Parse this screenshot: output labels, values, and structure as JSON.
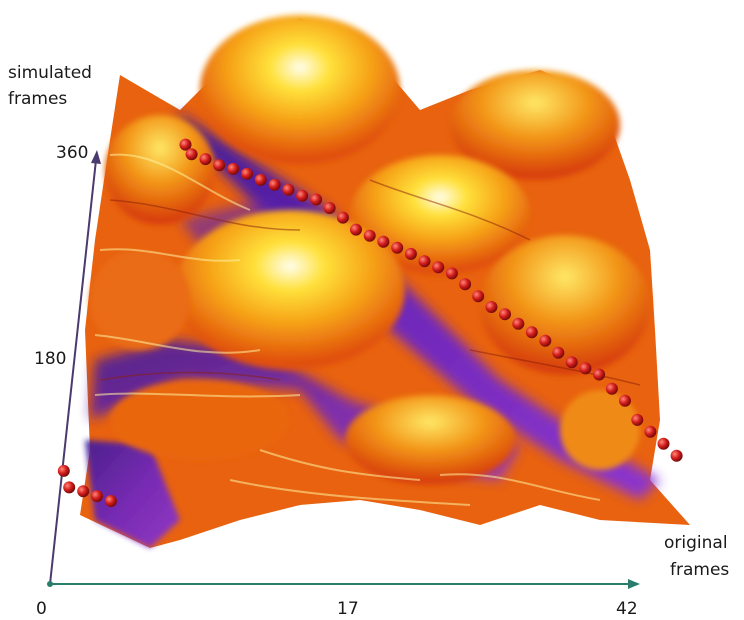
{
  "chart_data": {
    "type": "surface-3d",
    "title": "",
    "x_axis": {
      "label_line1": "original",
      "label_line2": "frames",
      "ticks": [
        "0",
        "17",
        "42"
      ],
      "tick_values": [
        0,
        17,
        42
      ],
      "range": [
        0,
        42
      ],
      "color": "#2a7d6b"
    },
    "y_axis": {
      "label_line1": "simulated",
      "label_line2": "frames",
      "ticks": [
        "180",
        "360"
      ],
      "tick_values": [
        180,
        360
      ],
      "range": [
        0,
        360
      ],
      "color": "#4a3a6e"
    },
    "path_color": "#d42020",
    "surface_colors": [
      "#4a1fa8",
      "#8a2fd0",
      "#e24a0c",
      "#f49512",
      "#ffd62e",
      "#fffbd0"
    ],
    "optimal_path": [
      {
        "x": 0.5,
        "y": 52
      },
      {
        "x": 1,
        "y": 38
      },
      {
        "x": 2,
        "y": 35
      },
      {
        "x": 3,
        "y": 31
      },
      {
        "x": 4,
        "y": 27
      },
      {
        "x": 6.5,
        "y": 330
      },
      {
        "x": 7,
        "y": 322
      },
      {
        "x": 8,
        "y": 318
      },
      {
        "x": 9,
        "y": 313
      },
      {
        "x": 10,
        "y": 310
      },
      {
        "x": 11,
        "y": 306
      },
      {
        "x": 12,
        "y": 301
      },
      {
        "x": 13,
        "y": 297
      },
      {
        "x": 14,
        "y": 293
      },
      {
        "x": 15,
        "y": 288
      },
      {
        "x": 16,
        "y": 285
      },
      {
        "x": 17,
        "y": 278
      },
      {
        "x": 18,
        "y": 270
      },
      {
        "x": 19,
        "y": 260
      },
      {
        "x": 20,
        "y": 255
      },
      {
        "x": 21,
        "y": 250
      },
      {
        "x": 22,
        "y": 245
      },
      {
        "x": 23,
        "y": 240
      },
      {
        "x": 24,
        "y": 234
      },
      {
        "x": 25,
        "y": 229
      },
      {
        "x": 26,
        "y": 224
      },
      {
        "x": 27,
        "y": 215
      },
      {
        "x": 28,
        "y": 205
      },
      {
        "x": 29,
        "y": 196
      },
      {
        "x": 30,
        "y": 190
      },
      {
        "x": 31,
        "y": 182
      },
      {
        "x": 32,
        "y": 175
      },
      {
        "x": 33,
        "y": 168
      },
      {
        "x": 34,
        "y": 158
      },
      {
        "x": 35,
        "y": 150
      },
      {
        "x": 36,
        "y": 145
      },
      {
        "x": 37,
        "y": 140
      },
      {
        "x": 38,
        "y": 128
      },
      {
        "x": 39,
        "y": 118
      },
      {
        "x": 40,
        "y": 102
      },
      {
        "x": 41,
        "y": 92
      },
      {
        "x": 42,
        "y": 82
      },
      {
        "x": 43,
        "y": 72
      }
    ]
  }
}
